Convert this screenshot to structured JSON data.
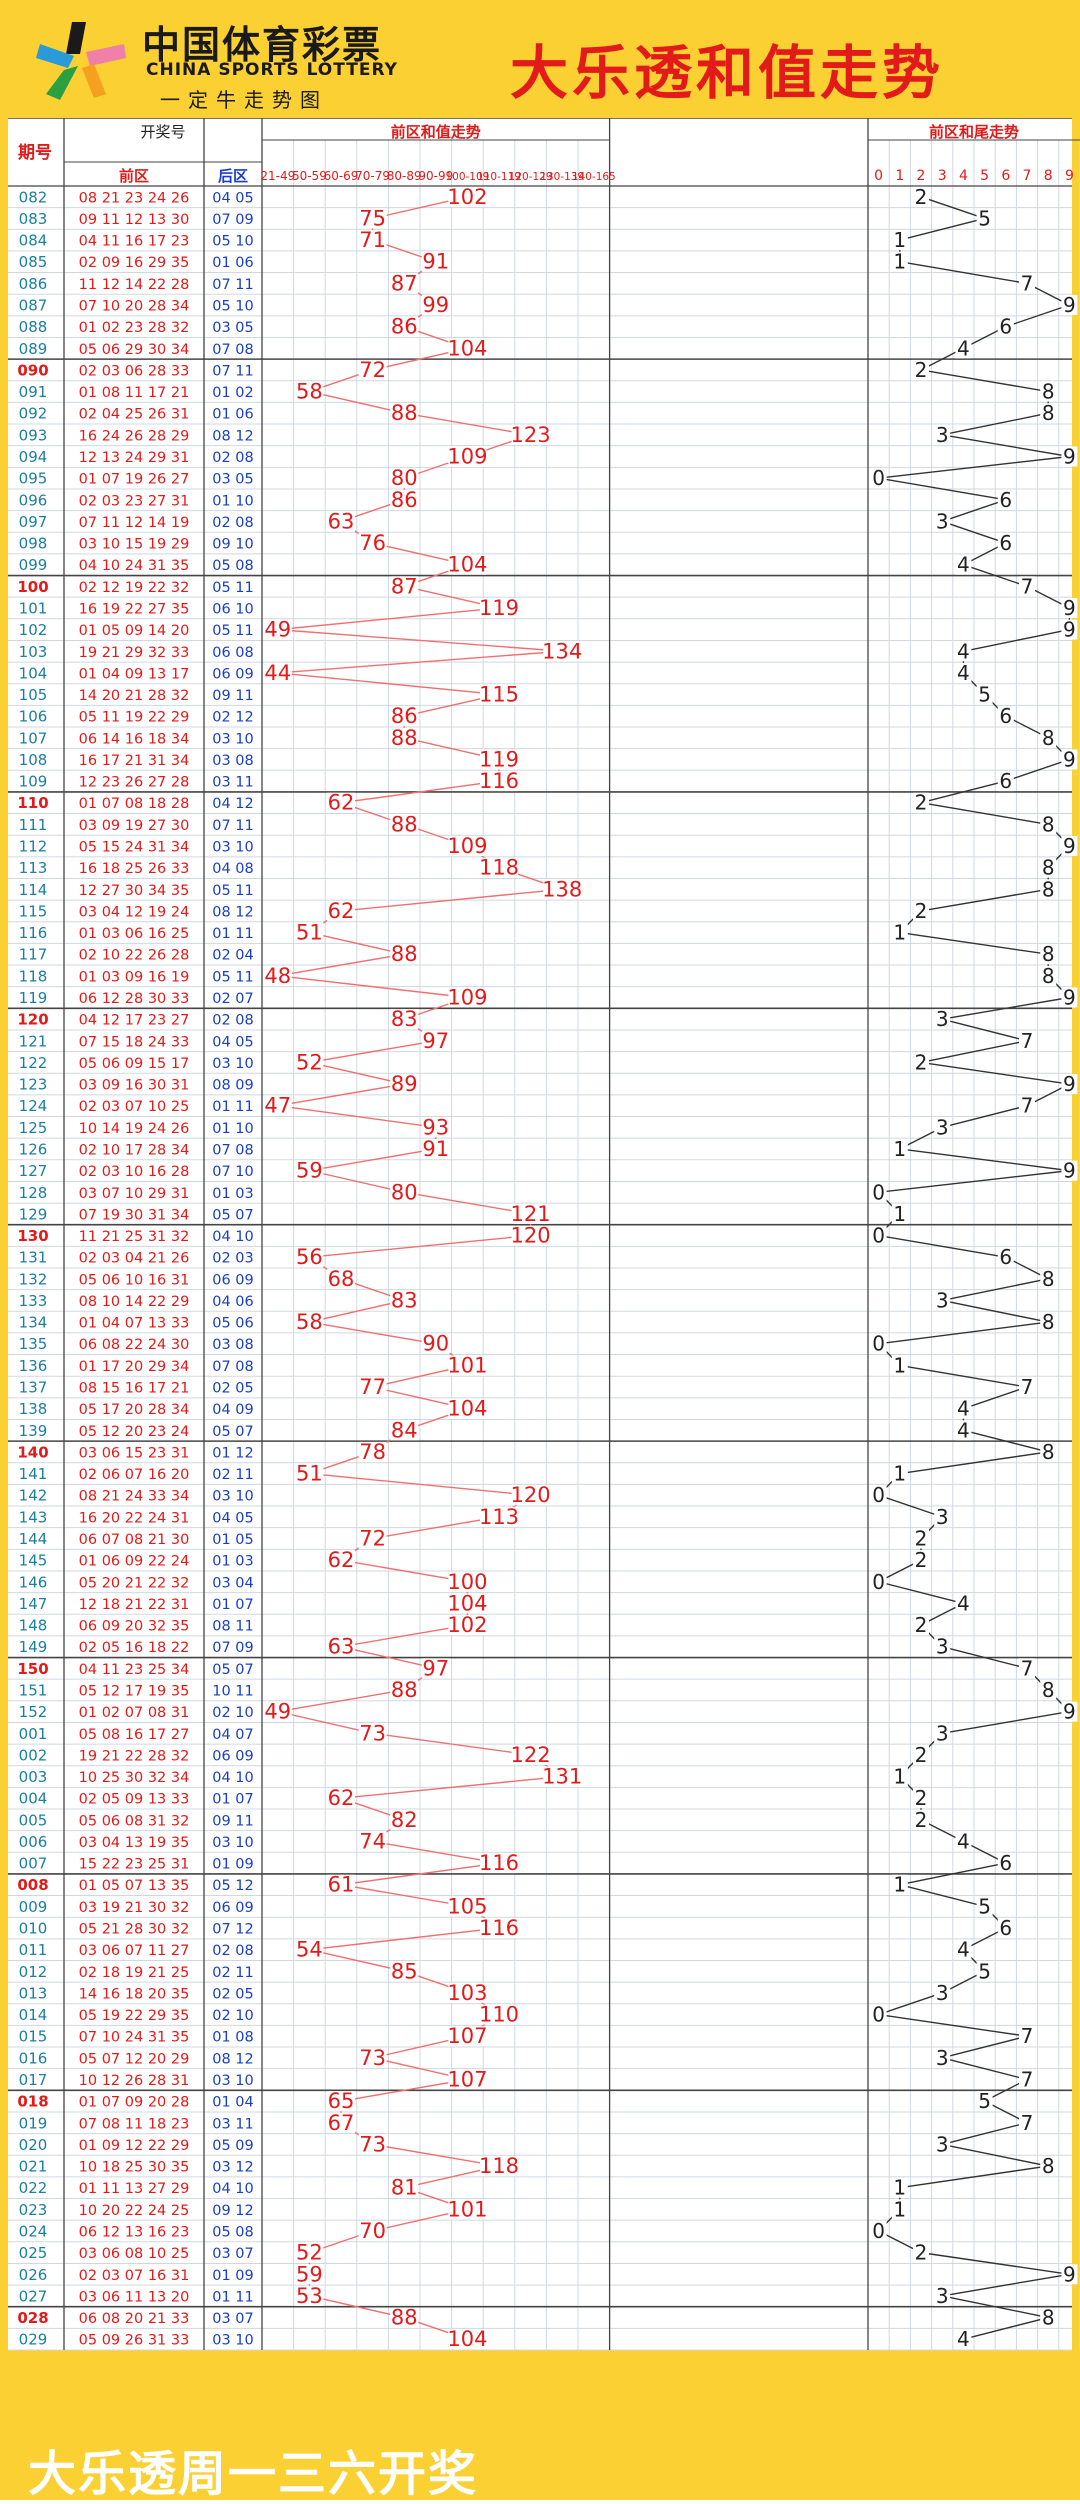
{
  "header": {
    "logo_cn": "中国体育彩票",
    "logo_en": "CHINA SPORTS LOTTERY",
    "logo_slogan": "一定牛走势图",
    "title": "大乐透和值走势"
  },
  "table": {
    "col_issue": "期号",
    "col_draw": "开奖号",
    "col_front": "前区",
    "col_back": "后区",
    "col_sum": "前区和值走势",
    "col_tail": "前区和尾走势",
    "ranges": [
      "21-49",
      "50-59",
      "60-69",
      "70-79",
      "80-89",
      "90-99",
      "100-109",
      "110-119",
      "120-129",
      "130-139",
      "140-165"
    ],
    "tails": [
      "0",
      "1",
      "2",
      "3",
      "4",
      "5",
      "6",
      "7",
      "8",
      "9"
    ]
  },
  "footer": {
    "text": "大乐透周一三六开奖"
  },
  "colors": {
    "accent_yellow": "#fbd033",
    "red": "#e21a1a",
    "blue": "#1a3fc4",
    "teal": "#1a7fa0",
    "grid": "#cfd8e0"
  },
  "chart_data": {
    "type": "table",
    "rows": [
      {
        "issue": "082",
        "front": "08 21 23 24 26",
        "back": "04 05",
        "sum": 102,
        "tail": 2
      },
      {
        "issue": "083",
        "front": "09 11 12 13 30",
        "back": "07 09",
        "sum": 75,
        "tail": 5
      },
      {
        "issue": "084",
        "front": "04 11 16 17 23",
        "back": "05 10",
        "sum": 71,
        "tail": 1
      },
      {
        "issue": "085",
        "front": "02 09 16 29 35",
        "back": "01 06",
        "sum": 91,
        "tail": 1
      },
      {
        "issue": "086",
        "front": "11 12 14 22 28",
        "back": "07 11",
        "sum": 87,
        "tail": 7
      },
      {
        "issue": "087",
        "front": "07 10 20 28 34",
        "back": "05 10",
        "sum": 99,
        "tail": 9
      },
      {
        "issue": "088",
        "front": "01 02 23 28 32",
        "back": "03 05",
        "sum": 86,
        "tail": 6
      },
      {
        "issue": "089",
        "front": "05 06 29 30 34",
        "back": "07 08",
        "sum": 104,
        "tail": 4
      },
      {
        "issue": "090",
        "front": "02 03 06 28 33",
        "back": "07 11",
        "sum": 72,
        "tail": 2
      },
      {
        "issue": "091",
        "front": "01 08 11 17 21",
        "back": "01 02",
        "sum": 58,
        "tail": 8
      },
      {
        "issue": "092",
        "front": "02 04 25 26 31",
        "back": "01 06",
        "sum": 88,
        "tail": 8
      },
      {
        "issue": "093",
        "front": "16 24 26 28 29",
        "back": "08 12",
        "sum": 123,
        "tail": 3
      },
      {
        "issue": "094",
        "front": "12 13 24 29 31",
        "back": "02 08",
        "sum": 109,
        "tail": 9
      },
      {
        "issue": "095",
        "front": "01 07 19 26 27",
        "back": "03 05",
        "sum": 80,
        "tail": 0
      },
      {
        "issue": "096",
        "front": "02 03 23 27 31",
        "back": "01 10",
        "sum": 86,
        "tail": 6
      },
      {
        "issue": "097",
        "front": "07 11 12 14 19",
        "back": "02 08",
        "sum": 63,
        "tail": 3
      },
      {
        "issue": "098",
        "front": "03 10 15 19 29",
        "back": "09 10",
        "sum": 76,
        "tail": 6
      },
      {
        "issue": "099",
        "front": "04 10 24 31 35",
        "back": "05 08",
        "sum": 104,
        "tail": 4
      },
      {
        "issue": "100",
        "front": "02 12 19 22 32",
        "back": "05 11",
        "sum": 87,
        "tail": 7
      },
      {
        "issue": "101",
        "front": "16 19 22 27 35",
        "back": "06 10",
        "sum": 119,
        "tail": 9
      },
      {
        "issue": "102",
        "front": "01 05 09 14 20",
        "back": "05 11",
        "sum": 49,
        "tail": 9
      },
      {
        "issue": "103",
        "front": "19 21 29 32 33",
        "back": "06 08",
        "sum": 134,
        "tail": 4
      },
      {
        "issue": "104",
        "front": "01 04 09 13 17",
        "back": "06 09",
        "sum": 44,
        "tail": 4
      },
      {
        "issue": "105",
        "front": "14 20 21 28 32",
        "back": "09 11",
        "sum": 115,
        "tail": 5
      },
      {
        "issue": "106",
        "front": "05 11 19 22 29",
        "back": "02 12",
        "sum": 86,
        "tail": 6
      },
      {
        "issue": "107",
        "front": "06 14 16 18 34",
        "back": "03 10",
        "sum": 88,
        "tail": 8
      },
      {
        "issue": "108",
        "front": "16 17 21 31 34",
        "back": "03 08",
        "sum": 119,
        "tail": 9
      },
      {
        "issue": "109",
        "front": "12 23 26 27 28",
        "back": "03 11",
        "sum": 116,
        "tail": 6
      },
      {
        "issue": "110",
        "front": "01 07 08 18 28",
        "back": "04 12",
        "sum": 62,
        "tail": 2
      },
      {
        "issue": "111",
        "front": "03 09 19 27 30",
        "back": "07 11",
        "sum": 88,
        "tail": 8
      },
      {
        "issue": "112",
        "front": "05 15 24 31 34",
        "back": "03 10",
        "sum": 109,
        "tail": 9
      },
      {
        "issue": "113",
        "front": "16 18 25 26 33",
        "back": "04 08",
        "sum": 118,
        "tail": 8
      },
      {
        "issue": "114",
        "front": "12 27 30 34 35",
        "back": "05 11",
        "sum": 138,
        "tail": 8
      },
      {
        "issue": "115",
        "front": "03 04 12 19 24",
        "back": "08 12",
        "sum": 62,
        "tail": 2
      },
      {
        "issue": "116",
        "front": "01 03 06 16 25",
        "back": "01 11",
        "sum": 51,
        "tail": 1
      },
      {
        "issue": "117",
        "front": "02 10 22 26 28",
        "back": "02 04",
        "sum": 88,
        "tail": 8
      },
      {
        "issue": "118",
        "front": "01 03 09 16 19",
        "back": "05 11",
        "sum": 48,
        "tail": 8
      },
      {
        "issue": "119",
        "front": "06 12 28 30 33",
        "back": "02 07",
        "sum": 109,
        "tail": 9
      },
      {
        "issue": "120",
        "front": "04 12 17 23 27",
        "back": "02 08",
        "sum": 83,
        "tail": 3
      },
      {
        "issue": "121",
        "front": "07 15 18 24 33",
        "back": "04 05",
        "sum": 97,
        "tail": 7
      },
      {
        "issue": "122",
        "front": "05 06 09 15 17",
        "back": "03 10",
        "sum": 52,
        "tail": 2
      },
      {
        "issue": "123",
        "front": "03 09 16 30 31",
        "back": "08 09",
        "sum": 89,
        "tail": 9
      },
      {
        "issue": "124",
        "front": "02 03 07 10 25",
        "back": "01 11",
        "sum": 47,
        "tail": 7
      },
      {
        "issue": "125",
        "front": "10 14 19 24 26",
        "back": "01 10",
        "sum": 93,
        "tail": 3
      },
      {
        "issue": "126",
        "front": "02 10 17 28 34",
        "back": "07 08",
        "sum": 91,
        "tail": 1
      },
      {
        "issue": "127",
        "front": "02 03 10 16 28",
        "back": "07 10",
        "sum": 59,
        "tail": 9
      },
      {
        "issue": "128",
        "front": "03 07 10 29 31",
        "back": "01 03",
        "sum": 80,
        "tail": 0
      },
      {
        "issue": "129",
        "front": "07 19 30 31 34",
        "back": "05 07",
        "sum": 121,
        "tail": 1
      },
      {
        "issue": "130",
        "front": "11 21 25 31 32",
        "back": "04 10",
        "sum": 120,
        "tail": 0
      },
      {
        "issue": "131",
        "front": "02 03 04 21 26",
        "back": "02 03",
        "sum": 56,
        "tail": 6
      },
      {
        "issue": "132",
        "front": "05 06 10 16 31",
        "back": "06 09",
        "sum": 68,
        "tail": 8
      },
      {
        "issue": "133",
        "front": "08 10 14 22 29",
        "back": "04 06",
        "sum": 83,
        "tail": 3
      },
      {
        "issue": "134",
        "front": "01 04 07 13 33",
        "back": "05 06",
        "sum": 58,
        "tail": 8
      },
      {
        "issue": "135",
        "front": "06 08 22 24 30",
        "back": "03 08",
        "sum": 90,
        "tail": 0
      },
      {
        "issue": "136",
        "front": "01 17 20 29 34",
        "back": "07 08",
        "sum": 101,
        "tail": 1
      },
      {
        "issue": "137",
        "front": "08 15 16 17 21",
        "back": "02 05",
        "sum": 77,
        "tail": 7
      },
      {
        "issue": "138",
        "front": "05 17 20 28 34",
        "back": "04 09",
        "sum": 104,
        "tail": 4
      },
      {
        "issue": "139",
        "front": "05 12 20 23 24",
        "back": "05 07",
        "sum": 84,
        "tail": 4
      },
      {
        "issue": "140",
        "front": "03 06 15 23 31",
        "back": "01 12",
        "sum": 78,
        "tail": 8
      },
      {
        "issue": "141",
        "front": "02 06 07 16 20",
        "back": "02 11",
        "sum": 51,
        "tail": 1
      },
      {
        "issue": "142",
        "front": "08 21 24 33 34",
        "back": "03 10",
        "sum": 120,
        "tail": 0
      },
      {
        "issue": "143",
        "front": "16 20 22 24 31",
        "back": "04 05",
        "sum": 113,
        "tail": 3
      },
      {
        "issue": "144",
        "front": "06 07 08 21 30",
        "back": "01 05",
        "sum": 72,
        "tail": 2
      },
      {
        "issue": "145",
        "front": "01 06 09 22 24",
        "back": "01 03",
        "sum": 62,
        "tail": 2
      },
      {
        "issue": "146",
        "front": "05 20 21 22 32",
        "back": "03 04",
        "sum": 100,
        "tail": 0
      },
      {
        "issue": "147",
        "front": "12 18 21 22 31",
        "back": "01 07",
        "sum": 104,
        "tail": 4
      },
      {
        "issue": "148",
        "front": "06 09 20 32 35",
        "back": "08 11",
        "sum": 102,
        "tail": 2
      },
      {
        "issue": "149",
        "front": "02 05 16 18 22",
        "back": "07 09",
        "sum": 63,
        "tail": 3
      },
      {
        "issue": "150",
        "front": "04 11 23 25 34",
        "back": "05 07",
        "sum": 97,
        "tail": 7
      },
      {
        "issue": "151",
        "front": "05 12 17 19 35",
        "back": "10 11",
        "sum": 88,
        "tail": 8
      },
      {
        "issue": "152",
        "front": "01 02 07 08 31",
        "back": "02 10",
        "sum": 49,
        "tail": 9
      },
      {
        "issue": "001",
        "front": "05 08 16 17 27",
        "back": "04 07",
        "sum": 73,
        "tail": 3
      },
      {
        "issue": "002",
        "front": "19 21 22 28 32",
        "back": "06 09",
        "sum": 122,
        "tail": 2
      },
      {
        "issue": "003",
        "front": "10 25 30 32 34",
        "back": "04 10",
        "sum": 131,
        "tail": 1
      },
      {
        "issue": "004",
        "front": "02 05 09 13 33",
        "back": "01 07",
        "sum": 62,
        "tail": 2
      },
      {
        "issue": "005",
        "front": "05 06 08 31 32",
        "back": "09 11",
        "sum": 82,
        "tail": 2
      },
      {
        "issue": "006",
        "front": "03 04 13 19 35",
        "back": "03 10",
        "sum": 74,
        "tail": 4
      },
      {
        "issue": "007",
        "front": "15 22 23 25 31",
        "back": "01 09",
        "sum": 116,
        "tail": 6
      },
      {
        "issue": "008",
        "front": "01 05 07 13 35",
        "back": "05 12",
        "sum": 61,
        "tail": 1
      },
      {
        "issue": "009",
        "front": "03 19 21 30 32",
        "back": "06 09",
        "sum": 105,
        "tail": 5
      },
      {
        "issue": "010",
        "front": "05 21 28 30 32",
        "back": "07 12",
        "sum": 116,
        "tail": 6
      },
      {
        "issue": "011",
        "front": "03 06 07 11 27",
        "back": "02 08",
        "sum": 54,
        "tail": 4
      },
      {
        "issue": "012",
        "front": "02 18 19 21 25",
        "back": "02 11",
        "sum": 85,
        "tail": 5
      },
      {
        "issue": "013",
        "front": "14 16 18 20 35",
        "back": "02 05",
        "sum": 103,
        "tail": 3
      },
      {
        "issue": "014",
        "front": "05 19 22 29 35",
        "back": "02 10",
        "sum": 110,
        "tail": 0
      },
      {
        "issue": "015",
        "front": "07 10 24 31 35",
        "back": "01 08",
        "sum": 107,
        "tail": 7
      },
      {
        "issue": "016",
        "front": "05 07 12 20 29",
        "back": "08 12",
        "sum": 73,
        "tail": 3
      },
      {
        "issue": "017",
        "front": "10 12 26 28 31",
        "back": "03 10",
        "sum": 107,
        "tail": 7
      },
      {
        "issue": "018",
        "front": "01 07 09 20 28",
        "back": "01 04",
        "sum": 65,
        "tail": 5
      },
      {
        "issue": "019",
        "front": "07 08 11 18 23",
        "back": "03 11",
        "sum": 67,
        "tail": 7
      },
      {
        "issue": "020",
        "front": "01 09 12 22 29",
        "back": "05 09",
        "sum": 73,
        "tail": 3
      },
      {
        "issue": "021",
        "front": "10 18 25 30 35",
        "back": "03 12",
        "sum": 118,
        "tail": 8
      },
      {
        "issue": "022",
        "front": "01 11 13 27 29",
        "back": "04 10",
        "sum": 81,
        "tail": 1
      },
      {
        "issue": "023",
        "front": "10 20 22 24 25",
        "back": "09 12",
        "sum": 101,
        "tail": 1
      },
      {
        "issue": "024",
        "front": "06 12 13 16 23",
        "back": "05 08",
        "sum": 70,
        "tail": 0
      },
      {
        "issue": "025",
        "front": "03 06 08 10 25",
        "back": "03 07",
        "sum": 52,
        "tail": 2
      },
      {
        "issue": "026",
        "front": "02 03 07 16 31",
        "back": "01 09",
        "sum": 59,
        "tail": 9
      },
      {
        "issue": "027",
        "front": "03 06 11 13 20",
        "back": "01 11",
        "sum": 53,
        "tail": 3
      },
      {
        "issue": "028",
        "front": "06 08 20 21 33",
        "back": "03 07",
        "sum": 88,
        "tail": 8
      },
      {
        "issue": "029",
        "front": "05 09 26 31 33",
        "back": "03 10",
        "sum": 104,
        "tail": 4
      }
    ]
  }
}
